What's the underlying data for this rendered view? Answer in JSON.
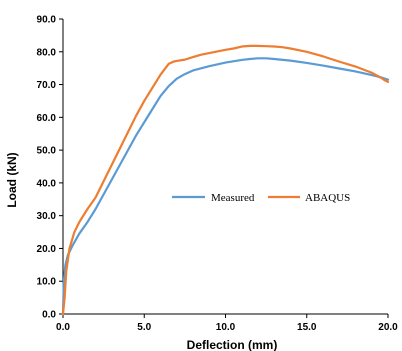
{
  "chart_data": {
    "type": "line",
    "title": "",
    "xlabel": "Deflection (mm)",
    "ylabel": "Load (kN)",
    "xlim": [
      0,
      20
    ],
    "ylim": [
      0,
      90
    ],
    "xticks": [
      0,
      5,
      10,
      15,
      20
    ],
    "xtick_labels": [
      "0.0",
      "5.0",
      "10.0",
      "15.0",
      "20.0"
    ],
    "yticks": [
      0,
      10,
      20,
      30,
      40,
      50,
      60,
      70,
      80,
      90
    ],
    "ytick_labels": [
      "0.0",
      "10.0",
      "20.0",
      "30.0",
      "40.0",
      "50.0",
      "60.0",
      "70.0",
      "80.0",
      "90.0"
    ],
    "grid": false,
    "legend_position": "center-right",
    "series": [
      {
        "name": "Measured",
        "color": "#5B9BD5",
        "x": [
          0,
          0.05,
          0.15,
          0.3,
          0.6,
          1.0,
          1.5,
          2.0,
          2.5,
          3.0,
          3.5,
          4.0,
          4.5,
          5.0,
          5.5,
          6.0,
          6.5,
          7.0,
          7.5,
          8.0,
          9.0,
          10.0,
          11.0,
          11.5,
          12.0,
          12.5,
          13.0,
          14.0,
          15.0,
          16.0,
          17.0,
          18.0,
          19.0,
          19.5,
          20.0
        ],
        "y": [
          0,
          10.0,
          15.0,
          18.0,
          21.0,
          24.5,
          28.0,
          32.0,
          36.5,
          41.0,
          45.5,
          50.0,
          54.5,
          58.5,
          62.5,
          66.5,
          69.5,
          71.8,
          73.2,
          74.3,
          75.6,
          76.7,
          77.5,
          77.8,
          78.0,
          78.0,
          77.8,
          77.3,
          76.6,
          75.8,
          74.9,
          74.0,
          72.9,
          72.3,
          71.5
        ]
      },
      {
        "name": "ABAQUS",
        "color": "#ED7D31",
        "x": [
          0,
          0.1,
          0.2,
          0.4,
          0.7,
          1.0,
          1.5,
          2.0,
          2.5,
          3.0,
          3.5,
          4.0,
          4.5,
          5.0,
          5.5,
          6.0,
          6.5,
          6.8,
          7.0,
          7.5,
          8.0,
          8.5,
          9.0,
          9.5,
          10.0,
          10.5,
          11.0,
          11.5,
          12.0,
          12.5,
          13.0,
          13.5,
          14.0,
          15.0,
          16.0,
          17.0,
          18.0,
          19.0,
          19.3,
          19.6,
          19.8,
          20.0
        ],
        "y": [
          0,
          5.0,
          13.0,
          20.0,
          25.0,
          28.0,
          32.0,
          35.5,
          40.5,
          45.5,
          50.5,
          55.5,
          60.5,
          65.0,
          69.0,
          73.0,
          76.3,
          77.0,
          77.2,
          77.6,
          78.4,
          79.1,
          79.6,
          80.1,
          80.6,
          81.0,
          81.6,
          81.8,
          81.8,
          81.7,
          81.6,
          81.4,
          81.0,
          80.0,
          78.6,
          77.0,
          75.5,
          73.6,
          72.8,
          72.0,
          71.3,
          70.8
        ]
      }
    ]
  }
}
